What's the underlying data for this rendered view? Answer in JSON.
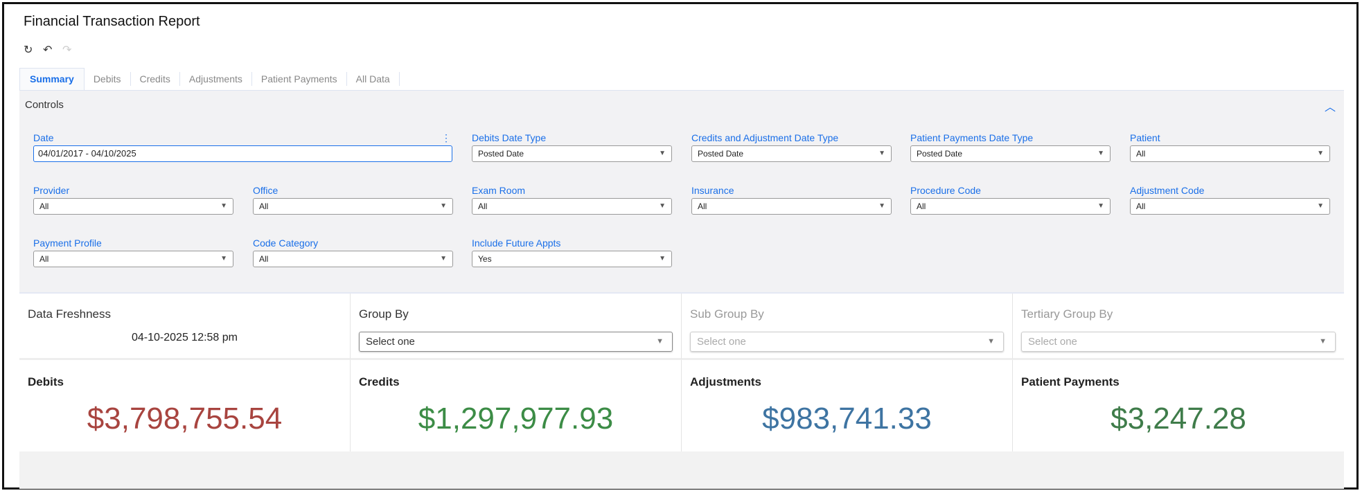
{
  "title": "Financial Transaction Report",
  "toolbar": {
    "refresh_icon": "↻",
    "undo_icon": "↶",
    "redo_icon": "↷"
  },
  "tabs": [
    "Summary",
    "Debits",
    "Credits",
    "Adjustments",
    "Patient Payments",
    "All Data"
  ],
  "controls": {
    "title": "Controls",
    "date": {
      "label": "Date",
      "value": "04/01/2017 - 04/10/2025"
    },
    "fields": [
      {
        "label": "Debits Date Type",
        "value": "Posted Date"
      },
      {
        "label": "Credits and Adjustment Date Type",
        "value": "Posted Date"
      },
      {
        "label": "Patient Payments Date Type",
        "value": "Posted Date"
      },
      {
        "label": "Patient",
        "value": "All"
      },
      {
        "label": "Provider",
        "value": "All"
      },
      {
        "label": "Office",
        "value": "All"
      },
      {
        "label": "Exam Room",
        "value": "All"
      },
      {
        "label": "Insurance",
        "value": "All"
      },
      {
        "label": "Procedure Code",
        "value": "All"
      },
      {
        "label": "Adjustment Code",
        "value": "All"
      },
      {
        "label": "Payment Profile",
        "value": "All"
      },
      {
        "label": "Code Category",
        "value": "All"
      },
      {
        "label": "Include Future Appts",
        "value": "Yes"
      }
    ]
  },
  "freshness": {
    "label": "Data Freshness",
    "value": "04-10-2025 12:58 pm"
  },
  "grouping": [
    {
      "label": "Group By",
      "placeholder": "Select one"
    },
    {
      "label": "Sub Group By",
      "placeholder": "Select one"
    },
    {
      "label": "Tertiary Group By",
      "placeholder": "Select one"
    }
  ],
  "metrics": [
    {
      "label": "Debits",
      "value": "$3,798,755.54",
      "color": "#a8443f"
    },
    {
      "label": "Credits",
      "value": "$1,297,977.93",
      "color": "#3c8c46"
    },
    {
      "label": "Adjustments",
      "value": "$983,741.33",
      "color": "#3e74a2"
    },
    {
      "label": "Patient Payments",
      "value": "$3,247.28",
      "color": "#3f7c4a"
    }
  ]
}
